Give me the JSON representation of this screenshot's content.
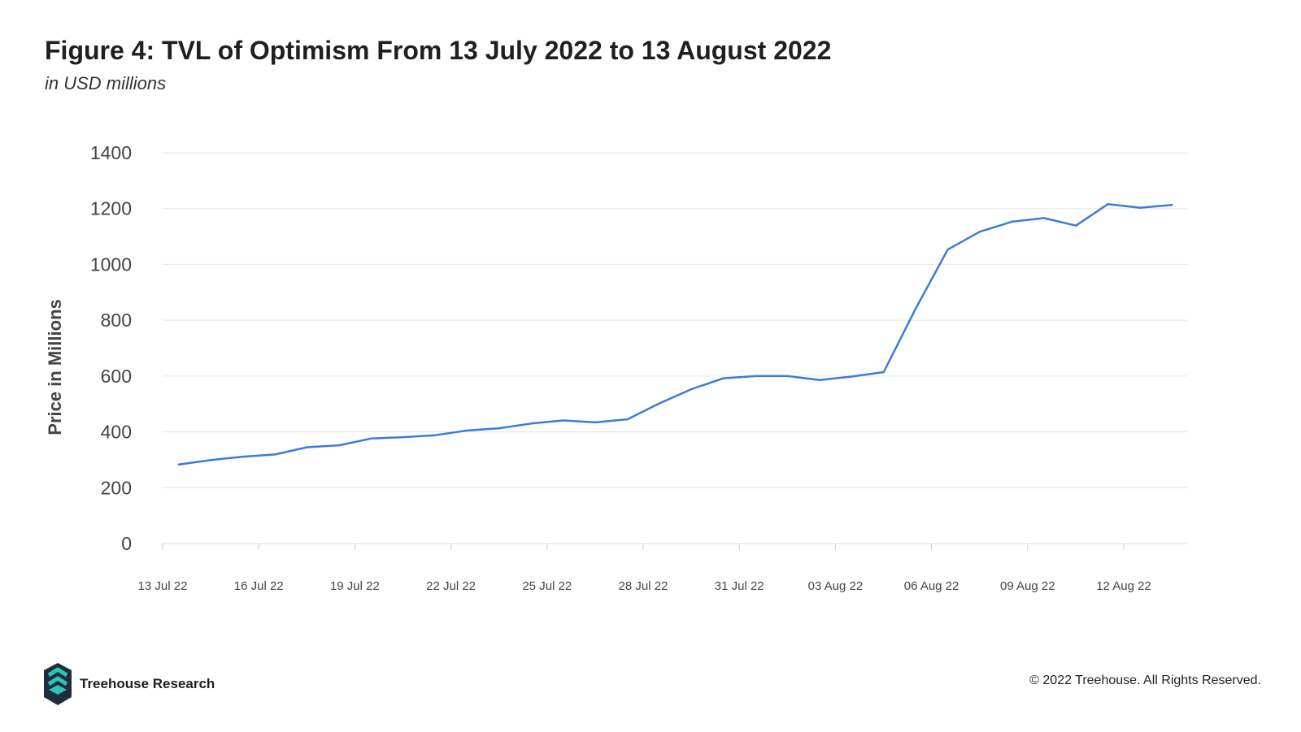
{
  "header": {
    "title": "Figure 4: TVL of Optimism From 13 July 2022 to 13 August 2022",
    "subtitle": "in USD millions"
  },
  "chart_data": {
    "type": "line",
    "ylabel": "Price in Millions",
    "ylim": [
      0,
      1400
    ],
    "yticks": [
      0,
      200,
      400,
      600,
      800,
      1000,
      1200,
      1400
    ],
    "x_tick_labels": [
      "13 Jul 22",
      "16 Jul 22",
      "19 Jul 22",
      "22 Jul 22",
      "25 Jul 22",
      "28 Jul 22",
      "31 Jul 22",
      "03 Aug 22",
      "06 Aug 22",
      "09 Aug 22",
      "12 Aug 22"
    ],
    "grid": true,
    "legend": "none",
    "series": [
      {
        "color": "#3a7bdc",
        "x": [
          "2022-07-13",
          "2022-07-14",
          "2022-07-15",
          "2022-07-16",
          "2022-07-17",
          "2022-07-18",
          "2022-07-19",
          "2022-07-20",
          "2022-07-21",
          "2022-07-22",
          "2022-07-23",
          "2022-07-24",
          "2022-07-25",
          "2022-07-26",
          "2022-07-27",
          "2022-07-28",
          "2022-07-29",
          "2022-07-30",
          "2022-07-31",
          "2022-08-01",
          "2022-08-02",
          "2022-08-03",
          "2022-08-04",
          "2022-08-05",
          "2022-08-06",
          "2022-08-07",
          "2022-08-08",
          "2022-08-09",
          "2022-08-10",
          "2022-08-11",
          "2022-08-12",
          "2022-08-13"
        ],
        "values": [
          283,
          299,
          311,
          319,
          345,
          352,
          376,
          381,
          388,
          405,
          413,
          430,
          441,
          434,
          445,
          502,
          553,
          592,
          600,
          600,
          586,
          598,
          614,
          842,
          1053,
          1117,
          1153,
          1166,
          1139,
          1216,
          1203,
          1213
        ]
      }
    ]
  },
  "footer": {
    "brand": "Treehouse Research",
    "copyright": "© 2022 Treehouse. All Rights Reserved."
  },
  "colors": {
    "line": "#3a7bdc",
    "grid": "#e6e6e6",
    "logo_teal": "#2ec4b6",
    "logo_dark": "#1f2d3d"
  }
}
